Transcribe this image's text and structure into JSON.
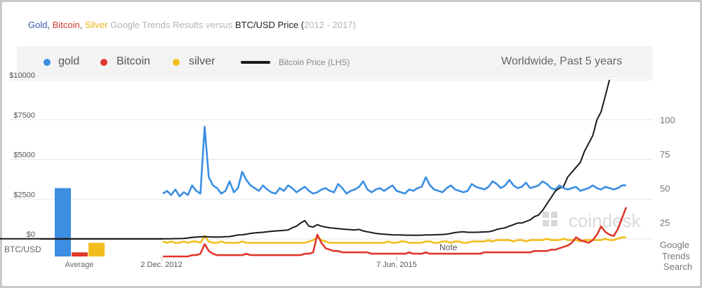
{
  "title": {
    "gold": "Gold",
    "sep1": ", ",
    "bitcoin": "Bitcoin",
    "sep2": ", ",
    "silver": "Silver",
    "mid": " Google Trends Results versus ",
    "btcusd": "BTC/USD Price (",
    "years": "2012 - 2017)"
  },
  "legend": {
    "gold": "gold",
    "bitcoin": "Bitcoin",
    "silver": "silver",
    "price": "Bitcoin Price (LHS)",
    "scope": "Worldwide, Past 5 years"
  },
  "colors": {
    "gold": "#3b8ee2",
    "bitcoin": "#e0382c",
    "silver": "#f2bd1e",
    "price": "#1a1a1a"
  },
  "watermark": "coindesk",
  "note": "Note",
  "chart_data": {
    "type": "line",
    "left_axis": {
      "label": "BTC/USD",
      "ticks": [
        0,
        2500,
        5000,
        7500,
        10000
      ],
      "tick_labels": [
        "$0",
        "$2500",
        "$5000",
        "$7500",
        "$10000"
      ],
      "range": [
        0,
        10000
      ]
    },
    "right_axis": {
      "label": [
        "Google",
        "Trends",
        "Search"
      ],
      "ticks": [
        25,
        50,
        75,
        100
      ],
      "range": [
        0,
        112
      ]
    },
    "x_tick_labels": [
      "2 Dec. 2012",
      "7 Jun. 2015"
    ],
    "average_bars": {
      "label": "Average",
      "gold": 50,
      "bitcoin": 3,
      "silver": 10
    },
    "series": [
      {
        "name": "gold",
        "axis": "right",
        "values": [
          46,
          48,
          45,
          49,
          44,
          47,
          45,
          52,
          48,
          46,
          95,
          58,
          52,
          50,
          46,
          48,
          55,
          47,
          50,
          62,
          56,
          52,
          50,
          48,
          52,
          49,
          47,
          46,
          50,
          48,
          52,
          50,
          47,
          49,
          51,
          48,
          46,
          47,
          49,
          50,
          48,
          47,
          53,
          50,
          46,
          48,
          49,
          51,
          55,
          49,
          47,
          49,
          50,
          48,
          50,
          52,
          48,
          47,
          46,
          49,
          48,
          50,
          51,
          58,
          52,
          49,
          48,
          47,
          50,
          52,
          49,
          48,
          47,
          48,
          53,
          51,
          50,
          49,
          51,
          55,
          53,
          50,
          52,
          56,
          52,
          50,
          51,
          54,
          50,
          51,
          52,
          55,
          53,
          50,
          49,
          52,
          50,
          49,
          50,
          51,
          48,
          49,
          50,
          52,
          50,
          49,
          51,
          50,
          49,
          50,
          52,
          52
        ]
      },
      {
        "name": "Bitcoin",
        "axis": "right",
        "values": [
          0,
          0,
          0,
          0,
          0,
          0,
          0,
          1,
          1,
          2,
          9,
          4,
          2,
          1,
          1,
          1,
          1,
          1,
          1,
          1,
          2,
          1,
          1,
          1,
          1,
          1,
          1,
          1,
          1,
          1,
          1,
          1,
          1,
          1,
          2,
          2,
          3,
          16,
          10,
          6,
          5,
          4,
          4,
          3,
          3,
          3,
          3,
          3,
          3,
          3,
          2,
          2,
          2,
          2,
          2,
          2,
          2,
          2,
          2,
          3,
          2,
          2,
          2,
          3,
          2,
          2,
          2,
          2,
          2,
          2,
          2,
          2,
          2,
          2,
          2,
          2,
          2,
          3,
          3,
          3,
          3,
          3,
          3,
          3,
          3,
          3,
          3,
          3,
          3,
          4,
          4,
          4,
          4,
          5,
          5,
          6,
          7,
          8,
          10,
          14,
          12,
          11,
          10,
          12,
          16,
          22,
          18,
          16,
          15,
          20,
          28,
          36
        ]
      },
      {
        "name": "silver",
        "axis": "right",
        "values": [
          11,
          10,
          11,
          10,
          10,
          11,
          10,
          11,
          11,
          10,
          15,
          11,
          10,
          10,
          11,
          10,
          10,
          10,
          10,
          11,
          10,
          10,
          10,
          10,
          10,
          10,
          10,
          10,
          10,
          10,
          10,
          10,
          10,
          10,
          10,
          11,
          12,
          14,
          12,
          11,
          10,
          10,
          10,
          10,
          10,
          10,
          10,
          10,
          10,
          10,
          10,
          10,
          10,
          10,
          11,
          10,
          10,
          11,
          11,
          10,
          10,
          10,
          10,
          11,
          11,
          10,
          10,
          11,
          11,
          10,
          11,
          11,
          10,
          10,
          11,
          11,
          11,
          11,
          12,
          11,
          12,
          12,
          12,
          12,
          11,
          12,
          12,
          11,
          12,
          12,
          12,
          12,
          13,
          12,
          12,
          12,
          13,
          12,
          12,
          12,
          11,
          12,
          12,
          12,
          12,
          12,
          13,
          12,
          12,
          13,
          14,
          14
        ]
      },
      {
        "name": "Bitcoin Price (LHS)",
        "axis": "left",
        "start_index": -56,
        "values": [
          13,
          13,
          13,
          13,
          13,
          13,
          13,
          13,
          13,
          13,
          13,
          13,
          13,
          13,
          13,
          13,
          13,
          13,
          13,
          13,
          13,
          13,
          13,
          13,
          13,
          13,
          13,
          13,
          13,
          13,
          13,
          13,
          13,
          13,
          13,
          13,
          13,
          13,
          13,
          13,
          13,
          13,
          13,
          13,
          13,
          13,
          13,
          13,
          13,
          13,
          13,
          13,
          13,
          13,
          13,
          13,
          13,
          13,
          14,
          20,
          22,
          30,
          60,
          100,
          120,
          130,
          150,
          130,
          125,
          120,
          125,
          140,
          150,
          200,
          250,
          260,
          300,
          350,
          380,
          400,
          420,
          450,
          480,
          500,
          520,
          540,
          560,
          700,
          800,
          1000,
          1150,
          800,
          750,
          900,
          800,
          750,
          700,
          680,
          650,
          620,
          600,
          580,
          560,
          600,
          500,
          450,
          400,
          350,
          320,
          300,
          280,
          260,
          250,
          250,
          240,
          240,
          230,
          230,
          240,
          250,
          250,
          260,
          270,
          280,
          300,
          350,
          400,
          430,
          450,
          420,
          420,
          420,
          430,
          440,
          450,
          500,
          600,
          650,
          700,
          800,
          900,
          1000,
          1000,
          1100,
          1200,
          1400,
          1500,
          1800,
          2200,
          2600,
          3000,
          3200,
          3300,
          3900,
          4200,
          4500,
          4800,
          5500,
          6000,
          6500,
          7500,
          8000,
          9000,
          10000
        ]
      }
    ]
  }
}
